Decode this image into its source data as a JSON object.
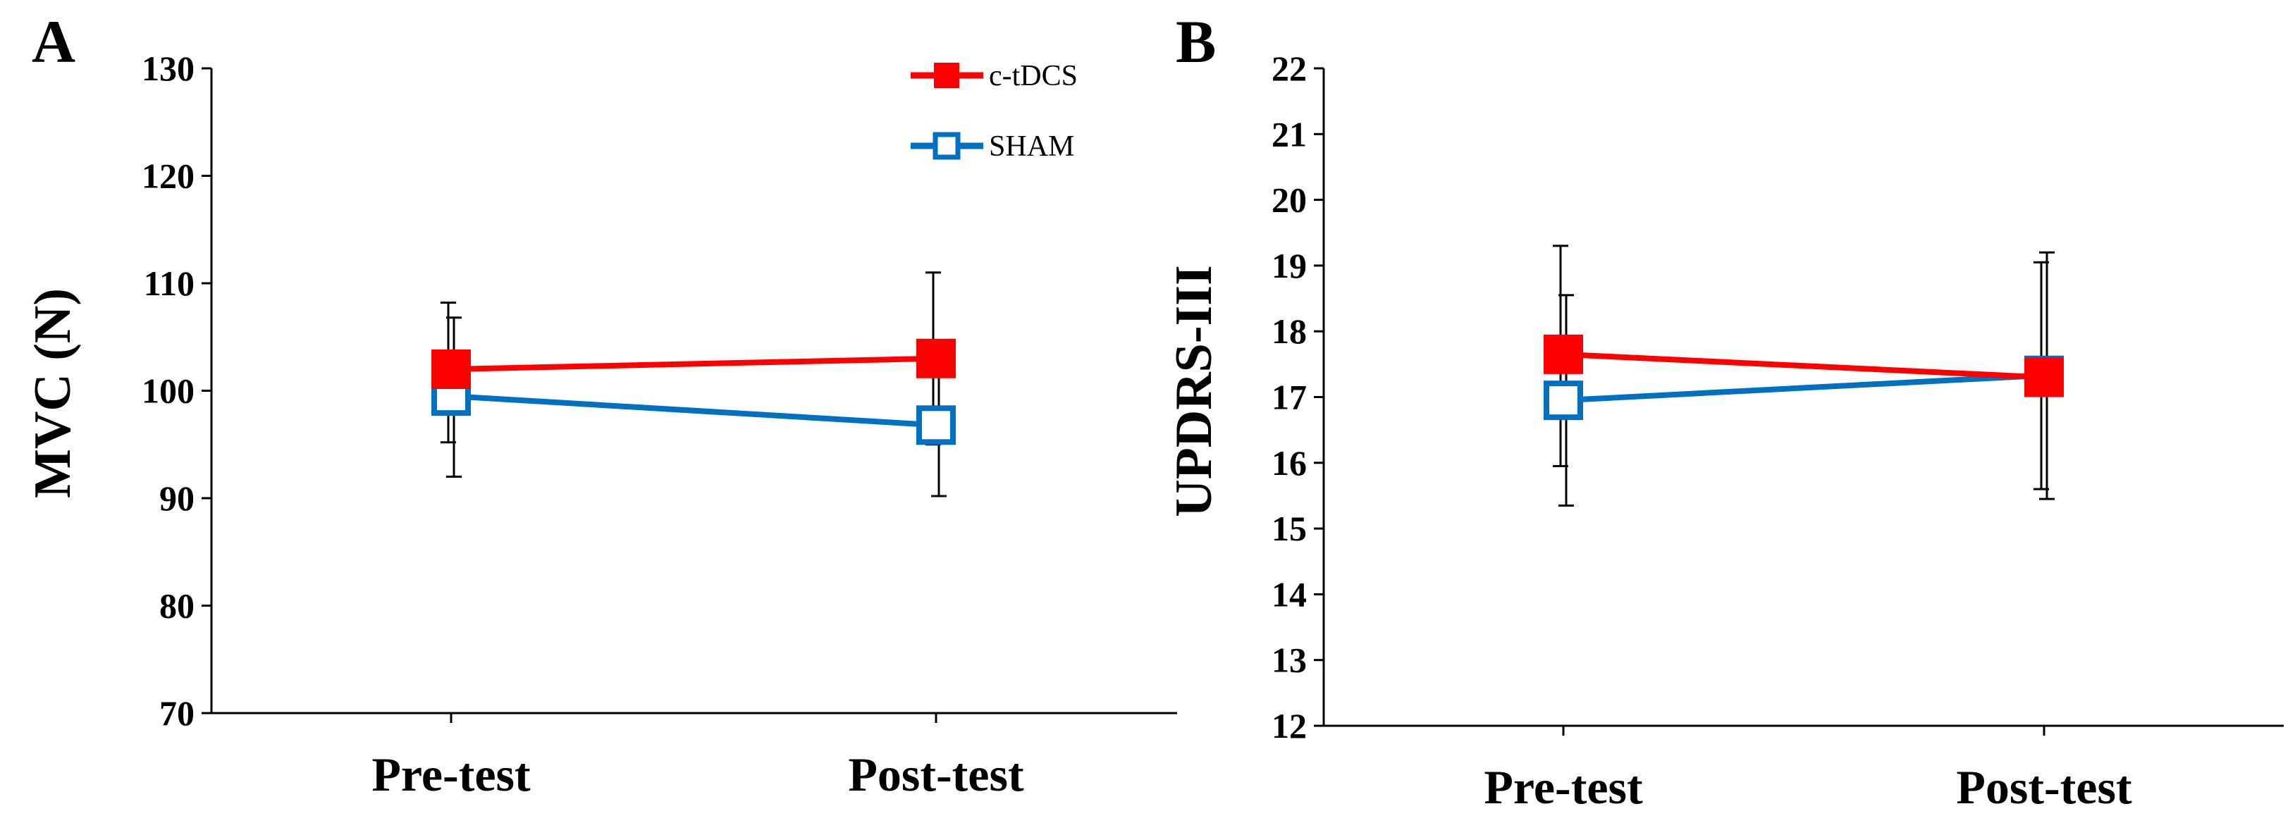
{
  "legend": [
    {
      "name": "c-tDCS",
      "color": "#ff0000",
      "marker": "filled-square"
    },
    {
      "name": "SHAM",
      "color": "#0070c0",
      "marker": "open-square"
    }
  ],
  "chart_data": [
    {
      "type": "line",
      "panel_label": "A",
      "ylabel": "MVC (N)",
      "categories": [
        "Pre-test",
        "Post-test"
      ],
      "ylim": [
        70,
        130
      ],
      "yticks": [
        "70",
        "80",
        "90",
        "100",
        "110",
        "120",
        "130"
      ],
      "series": [
        {
          "name": "c-tDCS",
          "color": "#ff0000",
          "values": [
            102,
            103
          ],
          "err_high": [
            108.2,
            111.0
          ],
          "err_low": [
            95.2,
            95.0
          ]
        },
        {
          "name": "SHAM",
          "color": "#0070c0",
          "values": [
            99.5,
            96.8
          ],
          "err_high": [
            106.8,
            103.5
          ],
          "err_low": [
            92.0,
            90.2
          ]
        }
      ]
    },
    {
      "type": "line",
      "panel_label": "B",
      "ylabel": "UPDRS-III",
      "categories": [
        "Pre-test",
        "Post-test"
      ],
      "ylim": [
        12,
        22
      ],
      "yticks": [
        "12",
        "13",
        "14",
        "15",
        "16",
        "17",
        "18",
        "19",
        "20",
        "21",
        "22"
      ],
      "series": [
        {
          "name": "c-tDCS",
          "color": "#ff0000",
          "values": [
            17.65,
            17.3
          ],
          "err_high": [
            19.3,
            19.05
          ],
          "err_low": [
            15.95,
            15.6
          ]
        },
        {
          "name": "SHAM",
          "color": "#0070c0",
          "values": [
            16.95,
            17.33
          ],
          "err_high": [
            18.55,
            19.2
          ],
          "err_low": [
            15.35,
            15.45
          ]
        }
      ]
    }
  ]
}
